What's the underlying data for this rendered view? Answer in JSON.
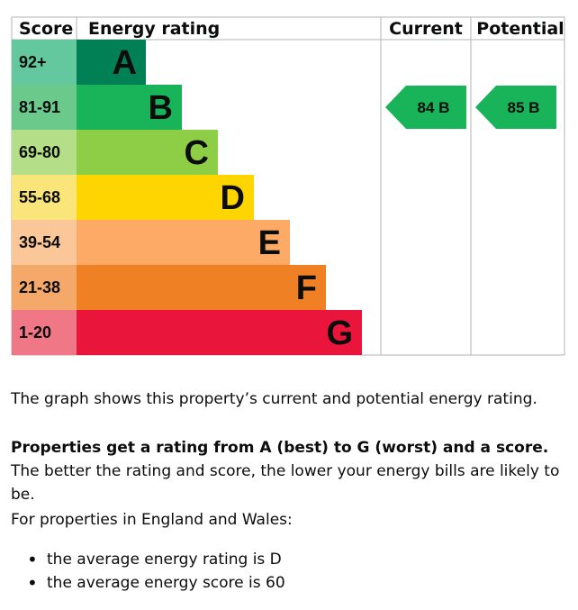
{
  "chart_data": {
    "type": "bar",
    "headers": {
      "score": "Score",
      "rating": "Energy rating",
      "current": "Current",
      "potential": "Potential"
    },
    "bands": [
      {
        "letter": "A",
        "range": "92+",
        "min": 92,
        "max": 100,
        "color": "#008054",
        "score_bg": "#64c89e"
      },
      {
        "letter": "B",
        "range": "81-91",
        "min": 81,
        "max": 91,
        "color": "#19b459",
        "score_bg": "#6cc98c"
      },
      {
        "letter": "C",
        "range": "69-80",
        "min": 69,
        "max": 80,
        "color": "#8dce46",
        "score_bg": "#b4de87"
      },
      {
        "letter": "D",
        "range": "55-68",
        "min": 55,
        "max": 68,
        "color": "#ffd500",
        "score_bg": "#fae57a"
      },
      {
        "letter": "E",
        "range": "39-54",
        "min": 39,
        "max": 54,
        "color": "#fcaa65",
        "score_bg": "#fbc798"
      },
      {
        "letter": "F",
        "range": "21-38",
        "min": 21,
        "max": 38,
        "color": "#ef8023",
        "score_bg": "#f4a96b"
      },
      {
        "letter": "G",
        "range": "1-20",
        "min": 1,
        "max": 20,
        "color": "#e9153b",
        "score_bg": "#f07785"
      }
    ],
    "current": {
      "score": 84,
      "band": "B",
      "label": "84  B",
      "color": "#19b459"
    },
    "potential": {
      "score": 85,
      "band": "B",
      "label": "85  B",
      "color": "#19b459"
    }
  },
  "text": {
    "graph_description": "The graph shows this property’s current and potential energy rating.",
    "rating_bold": "Properties get a rating from A (best) to G (worst) and a score.",
    "rating_rest": " The better the rating and score, the lower your energy bills are likely to be.",
    "england_wales": "For properties in England and Wales:",
    "bullets": [
      "the average energy rating is D",
      "the average energy score is 60"
    ]
  }
}
